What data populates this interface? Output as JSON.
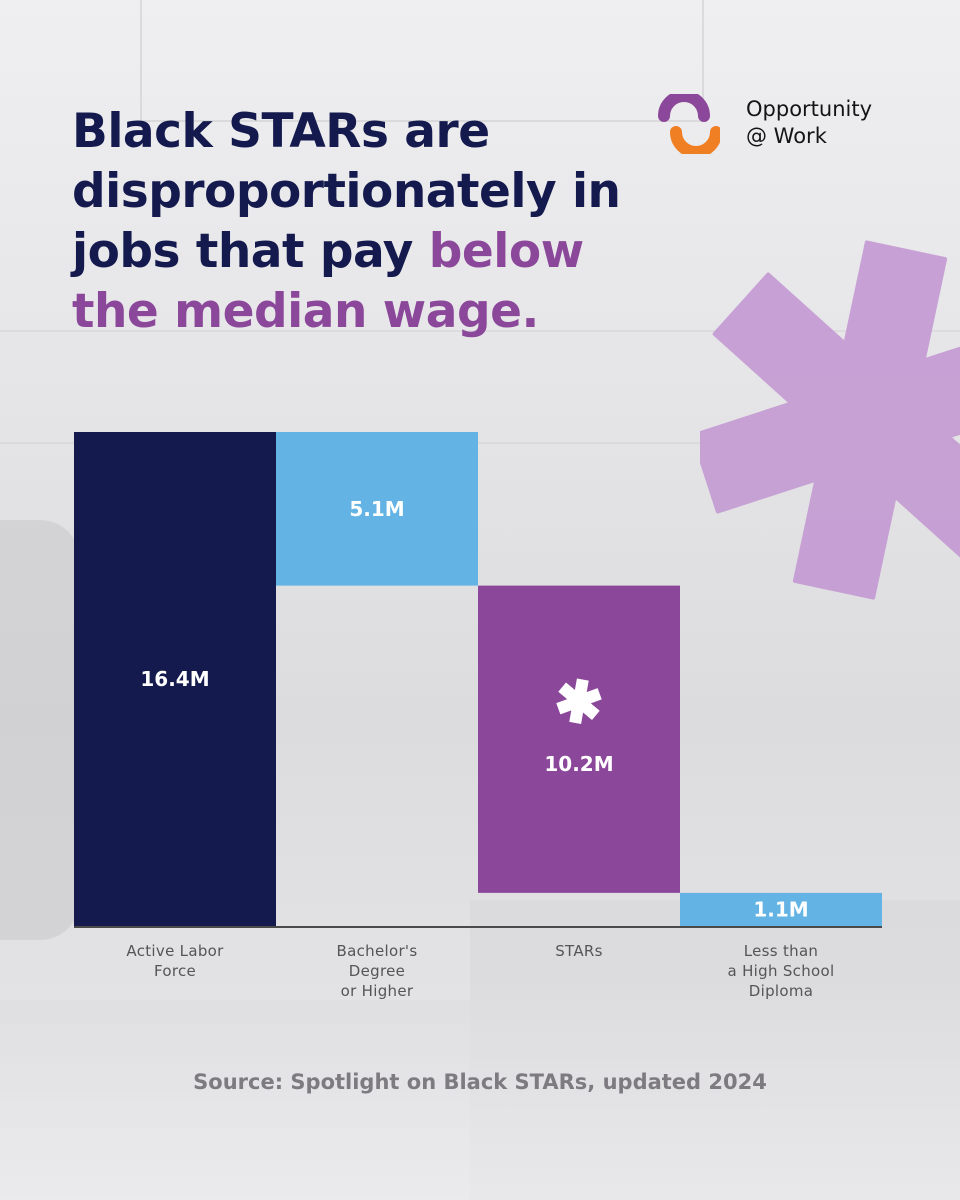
{
  "title": {
    "part1": "Black STARs are disproportionately in jobs that pay ",
    "highlight": "below the median wage."
  },
  "logo": {
    "line1": "Opportunity",
    "line2": "@ Work",
    "icon": "opportunity-at-work-logo-icon",
    "colors": {
      "purple": "#8b479a",
      "orange": "#ef7f22"
    }
  },
  "chart_data": {
    "type": "waterfall",
    "title": "",
    "xlabel": "",
    "ylabel": "",
    "unit": "M",
    "ylim": [
      0,
      16.4
    ],
    "grid": false,
    "categories": [
      "Active Labor Force",
      "Bachelor's Degree or Higher",
      "STARs",
      "Less than a High School Diploma"
    ],
    "category_lines": [
      [
        "Active Labor",
        "Force"
      ],
      [
        "Bachelor's",
        "Degree",
        "or Higher"
      ],
      [
        "STARs"
      ],
      [
        "Less than",
        "a High School",
        "Diploma"
      ]
    ],
    "bars": [
      {
        "category": "Active Labor Force",
        "start": 0,
        "end": 16.4,
        "label": "16.4M",
        "color": "#141a4d",
        "kind": "total"
      },
      {
        "category": "Bachelor's Degree or Higher",
        "start": 11.3,
        "end": 16.4,
        "label": "5.1M",
        "color": "#63b3e4",
        "kind": "subtract"
      },
      {
        "category": "STARs",
        "start": 1.1,
        "end": 11.3,
        "label": "10.2M",
        "color": "#8b479a",
        "kind": "subtract",
        "icon": "asterisk-icon"
      },
      {
        "category": "Less than a High School Diploma",
        "start": 0,
        "end": 1.1,
        "label": "1.1M",
        "color": "#63b3e4",
        "kind": "subtract"
      }
    ]
  },
  "source": "Source: Spotlight on Black STARs, updated 2024",
  "colors": {
    "navy": "#141a4d",
    "purple": "#8b479a",
    "light_blue": "#63b3e4",
    "lavender": "#c49ad3"
  }
}
